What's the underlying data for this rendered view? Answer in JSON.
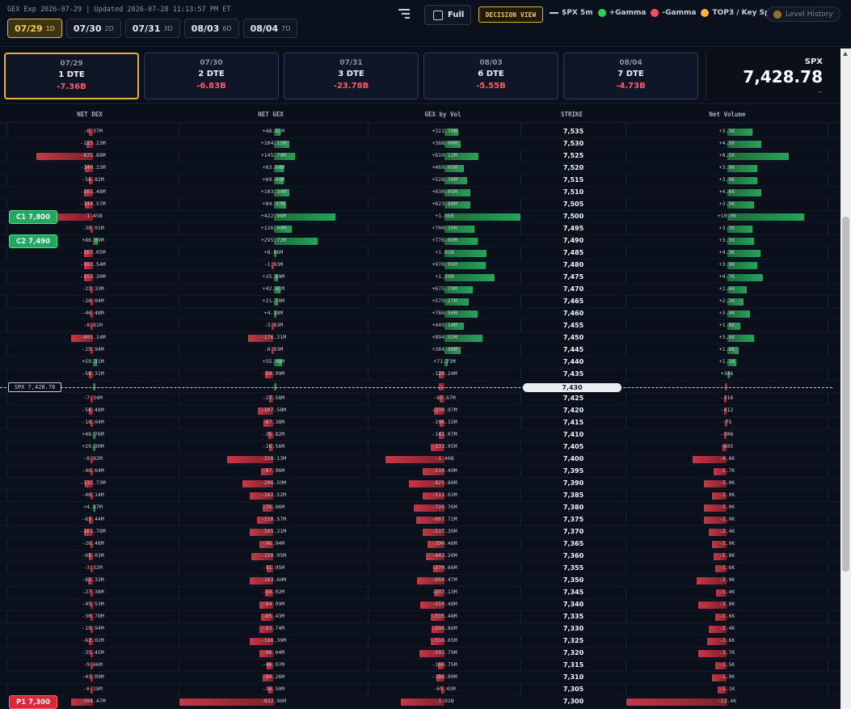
{
  "header": {
    "exp_line": "GEX Exp 2026-07-29 | Updated 2026-07-28 11:13:57 PM ET",
    "tabs": [
      {
        "date": "07/29",
        "dte": "1D"
      },
      {
        "date": "07/30",
        "dte": "2D"
      },
      {
        "date": "07/31",
        "dte": "3D"
      },
      {
        "date": "08/03",
        "dte": "6D"
      },
      {
        "date": "08/04",
        "dte": "7D"
      }
    ],
    "full_label": "Full",
    "decision_label": "DECISION VIEW",
    "legend": {
      "spx5m": "$PX 5m",
      "pos_gamma": "+Gamma",
      "neg_gamma": "-Gamma",
      "top3": "TOP3 / Key Spot"
    },
    "level_history": "Level History",
    "colors": {
      "accent": "#e0b33a",
      "pos": "#2ed156",
      "neg": "#ff4d5e",
      "key": "#f4b73a"
    }
  },
  "cards": [
    {
      "date": "07/29",
      "dte": "1 DTE",
      "gex": "-7.36B"
    },
    {
      "date": "07/30",
      "dte": "2 DTE",
      "gex": "-6.83B"
    },
    {
      "date": "07/31",
      "dte": "3 DTE",
      "gex": "-23.78B"
    },
    {
      "date": "08/03",
      "dte": "6 DTE",
      "gex": "-5.55B"
    },
    {
      "date": "08/04",
      "dte": "7 DTE",
      "gex": "-4.73B"
    }
  ],
  "spx": {
    "label": "SPX",
    "price": "7,428.78",
    "change": "--",
    "tag": "SPX 7,428.78"
  },
  "columns": [
    "NET DEX",
    "NET GEX",
    "GEX by Vol",
    "STRIKE",
    "Net Volume"
  ],
  "levels": {
    "c1": "C1 7,800",
    "c2": "C2 7,490",
    "p1": "P1 7,300"
  },
  "spot_strike": "7,430",
  "rows": [
    {
      "strike": "7,535",
      "dex": "-6.37M",
      "dexv": -0.03,
      "gex": "+48.81M",
      "gexv": 0.05,
      "vol": "+321.79M",
      "volv": 0.12,
      "nv": "+3.3K",
      "nvv": 0.17
    },
    {
      "strike": "7,530",
      "dex": "-123.23M",
      "dexv": -0.05,
      "gex": "+104.15M",
      "gexv": 0.11,
      "vol": "+388.00M",
      "volv": 0.14,
      "nv": "+4.5K",
      "nvv": 0.23
    },
    {
      "strike": "7,525",
      "dex": "-825.88M",
      "dexv": -0.44,
      "gex": "+145.70M",
      "gexv": 0.15,
      "vol": "+810.12M",
      "volv": 0.3,
      "nv": "+8.1K",
      "nvv": 0.41
    },
    {
      "strike": "7,520",
      "dex": "-140.23M",
      "dexv": -0.06,
      "gex": "+63.64M",
      "gexv": 0.07,
      "vol": "+469.05M",
      "volv": 0.17,
      "nv": "+3.9K",
      "nvv": 0.2
    },
    {
      "strike": "7,515",
      "dex": "-56.82M",
      "dexv": -0.03,
      "gex": "+69.04M",
      "gexv": 0.07,
      "vol": "+528.30M",
      "volv": 0.2,
      "nv": "+3.9K",
      "nvv": 0.2
    },
    {
      "strike": "7,510",
      "dex": "-161.48M",
      "dexv": -0.07,
      "gex": "+103.34M",
      "gexv": 0.11,
      "vol": "+630.05M",
      "volv": 0.23,
      "nv": "+4.6K",
      "nvv": 0.23
    },
    {
      "strike": "7,505",
      "dex": "-144.57M",
      "dexv": -0.06,
      "gex": "+84.97M",
      "gexv": 0.09,
      "vol": "+623.88M",
      "volv": 0.23,
      "nv": "+3.5K",
      "nvv": 0.18
    },
    {
      "strike": "7,500",
      "dex": "-1.45B",
      "dexv": -0.4,
      "gex": "+422.96M",
      "gexv": 0.44,
      "vol": "+1.96B",
      "volv": 0.72,
      "nv": "+10.0K",
      "nvv": 0.51
    },
    {
      "strike": "7,495",
      "dex": "-38.91M",
      "dexv": -0.02,
      "gex": "+126.00M",
      "gexv": 0.13,
      "vol": "+700.39M",
      "volv": 0.26,
      "nv": "+3.3K",
      "nvv": 0.17
    },
    {
      "strike": "7,490",
      "dex": "+86.09M",
      "dexv": 0.04,
      "gex": "+295.72M",
      "gexv": 0.31,
      "vol": "+776.60M",
      "volv": 0.29,
      "nv": "+3.5K",
      "nvv": 0.18
    },
    {
      "strike": "7,485",
      "dex": "-163.05M",
      "dexv": -0.07,
      "gex": "+8.06M",
      "gexv": 0.01,
      "vol": "+1.01B",
      "volv": 0.37,
      "nv": "+4.3K",
      "nvv": 0.22
    },
    {
      "strike": "7,480",
      "dex": "-163.54M",
      "dexv": -0.07,
      "gex": "-1.93M",
      "gexv": -0.01,
      "vol": "+970.95M",
      "volv": 0.36,
      "nv": "+3.9K",
      "nvv": 0.2
    },
    {
      "strike": "7,475",
      "dex": "-153.20M",
      "dexv": -0.07,
      "gex": "+25.69M",
      "gexv": 0.03,
      "vol": "+1.20B",
      "volv": 0.44,
      "nv": "+4.7K",
      "nvv": 0.24
    },
    {
      "strike": "7,470",
      "dex": "-23.33M",
      "dexv": -0.02,
      "gex": "+42.81M",
      "gexv": 0.05,
      "vol": "+675.79M",
      "volv": 0.25,
      "nv": "+2.6K",
      "nvv": 0.13
    },
    {
      "strike": "7,465",
      "dex": "-26.04M",
      "dexv": -0.02,
      "gex": "+21.78M",
      "gexv": 0.03,
      "vol": "+579.27M",
      "volv": 0.21,
      "nv": "+2.2K",
      "nvv": 0.11
    },
    {
      "strike": "7,460",
      "dex": "-46.48M",
      "dexv": -0.02,
      "gex": "+4.38M",
      "gexv": 0.01,
      "vol": "+786.56M",
      "volv": 0.29,
      "nv": "+3.0K",
      "nvv": 0.15
    },
    {
      "strike": "7,455",
      "dex": "-8.81M",
      "dexv": -0.01,
      "gex": "-3.83M",
      "gexv": -0.01,
      "vol": "+449.14M",
      "volv": 0.17,
      "nv": "+1.8K",
      "nvv": 0.09
    },
    {
      "strike": "7,450",
      "dex": "-401.14M",
      "dexv": -0.17,
      "gex": "-176.21M",
      "gexv": -0.18,
      "vol": "+894.93M",
      "volv": 0.33,
      "nv": "+3.6K",
      "nvv": 0.18
    },
    {
      "strike": "7,445",
      "dex": "-25.94M",
      "dexv": -0.02,
      "gex": "-8.93M",
      "gexv": -0.01,
      "vol": "+384.48M",
      "volv": 0.14,
      "nv": "+1.6K",
      "nvv": 0.08
    },
    {
      "strike": "7,440",
      "dex": "+59.31M",
      "dexv": 0.03,
      "gex": "+55.48M",
      "gexv": 0.06,
      "vol": "+71.73M",
      "volv": 0.03,
      "nv": "+1.1K",
      "nvv": 0.06
    },
    {
      "strike": "7,435",
      "dex": "-56.31M",
      "dexv": -0.03,
      "gex": "-54.99M",
      "gexv": -0.06,
      "vol": "-120.24M",
      "volv": -0.05,
      "nv": "+346",
      "nvv": 0.02
    },
    {
      "strike": "7,430",
      "dex": "",
      "dexv": 0.01,
      "gex": "",
      "gexv": 0.01,
      "vol": "",
      "volv": -0.05,
      "nv": "",
      "nvv": -0.01
    },
    {
      "strike": "7,425",
      "dex": "-7.34M",
      "dexv": -0.01,
      "gex": "-27.58M",
      "gexv": -0.03,
      "vol": "-87.67M",
      "volv": -0.04,
      "nv": "-316",
      "nvv": -0.02
    },
    {
      "strike": "7,420",
      "dex": "-56.48M",
      "dexv": -0.03,
      "gex": "-107.58M",
      "gexv": -0.11,
      "vol": "-230.97M",
      "volv": -0.09,
      "nv": "-412",
      "nvv": -0.02
    },
    {
      "strike": "7,415",
      "dex": "-18.04M",
      "dexv": -0.01,
      "gex": "-67.38M",
      "gexv": -0.07,
      "vol": "-106.15M",
      "volv": -0.04,
      "nv": "-75",
      "nvv": -0.01
    },
    {
      "strike": "7,410",
      "dex": "+48.76M",
      "dexv": 0.02,
      "gex": "-35.82M",
      "gexv": -0.04,
      "vol": "-141.07M",
      "volv": -0.05,
      "nv": "-308",
      "nvv": -0.02
    },
    {
      "strike": "7,405",
      "dex": "+29.30M",
      "dexv": 0.02,
      "gex": "-26.56M",
      "gexv": -0.03,
      "vol": "-332.95M",
      "volv": -0.12,
      "nv": "-605",
      "nvv": -0.03
    },
    {
      "strike": "7,400",
      "dex": "-8.82M",
      "dexv": -0.01,
      "gex": "-310.13M",
      "gexv": -0.33,
      "vol": "-1.40B",
      "volv": -0.52,
      "nv": "-4.6K",
      "nvv": -0.23
    },
    {
      "strike": "7,395",
      "dex": "-46.64M",
      "dexv": -0.02,
      "gex": "-87.96M",
      "gexv": -0.09,
      "vol": "-510.49M",
      "volv": -0.19,
      "nv": "-1.7K",
      "nvv": -0.09
    },
    {
      "strike": "7,390",
      "dex": "-133.73M",
      "dexv": -0.06,
      "gex": "-206.59M",
      "gexv": -0.22,
      "vol": "-825.66M",
      "volv": -0.31,
      "nv": "-3.0K",
      "nvv": -0.15
    },
    {
      "strike": "7,385",
      "dex": "-46.14M",
      "dexv": -0.02,
      "gex": "-162.52M",
      "gexv": -0.17,
      "vol": "-511.03M",
      "volv": -0.19,
      "nv": "-2.0K",
      "nvv": -0.1
    },
    {
      "strike": "7,380",
      "dex": "+4.47M",
      "dexv": 0.01,
      "gex": "-76.06M",
      "gexv": -0.08,
      "vol": "-726.76M",
      "volv": -0.27,
      "nv": "-3.0K",
      "nvv": -0.15
    },
    {
      "strike": "7,375",
      "dex": "-63.44M",
      "dexv": -0.03,
      "gex": "-110.57M",
      "gexv": -0.12,
      "vol": "-667.72M",
      "volv": -0.25,
      "nv": "-2.9K",
      "nvv": -0.15
    },
    {
      "strike": "7,370",
      "dex": "-161.78M",
      "dexv": -0.07,
      "gex": "-165.21M",
      "gexv": -0.17,
      "vol": "-517.39M",
      "volv": -0.19,
      "nv": "-2.4K",
      "nvv": -0.12
    },
    {
      "strike": "7,365",
      "dex": "-26.48M",
      "dexv": -0.02,
      "gex": "-96.94M",
      "gexv": -0.1,
      "vol": "-390.46M",
      "volv": -0.15,
      "nv": "-1.9K",
      "nvv": -0.1
    },
    {
      "strike": "7,360",
      "dex": "-68.03M",
      "dexv": -0.03,
      "gex": "-150.95M",
      "gexv": -0.16,
      "vol": "-443.20M",
      "volv": -0.16,
      "nv": "-1.8K",
      "nvv": -0.09
    },
    {
      "strike": "7,355",
      "dex": "-3.32M",
      "dexv": -0.01,
      "gex": "-51.95M",
      "gexv": -0.05,
      "vol": "-279.66M",
      "volv": -0.1,
      "nv": "-1.6K",
      "nvv": -0.08
    },
    {
      "strike": "7,350",
      "dex": "-81.33M",
      "dexv": -0.04,
      "gex": "-163.60M",
      "gexv": -0.17,
      "vol": "-650.47M",
      "volv": -0.24,
      "nv": "-3.9K",
      "nvv": -0.2
    },
    {
      "strike": "7,345",
      "dex": "-27.38M",
      "dexv": -0.02,
      "gex": "-58.02M",
      "gexv": -0.06,
      "vol": "-237.13M",
      "volv": -0.09,
      "nv": "-1.4K",
      "nvv": -0.07
    },
    {
      "strike": "7,340",
      "dex": "-45.53M",
      "dexv": -0.02,
      "gex": "-94.99M",
      "gexv": -0.1,
      "vol": "-559.48M",
      "volv": -0.21,
      "nv": "-3.8K",
      "nvv": -0.19
    },
    {
      "strike": "7,335",
      "dex": "-30.78M",
      "dexv": -0.02,
      "gex": "-85.43M",
      "gexv": -0.09,
      "vol": "-335.48M",
      "volv": -0.12,
      "nv": "-1.6K",
      "nvv": -0.08
    },
    {
      "strike": "7,330",
      "dex": "-19.94M",
      "dexv": -0.01,
      "gex": "-93.74M",
      "gexv": -0.1,
      "vol": "-296.86M",
      "volv": -0.11,
      "nv": "-2.4K",
      "nvv": -0.12
    },
    {
      "strike": "7,325",
      "dex": "-62.02M",
      "dexv": -0.03,
      "gex": "-166.39M",
      "gexv": -0.17,
      "vol": "-316.65M",
      "volv": -0.12,
      "nv": "-2.6K",
      "nvv": -0.13
    },
    {
      "strike": "7,320",
      "dex": "-35.45M",
      "dexv": -0.02,
      "gex": "-96.04M",
      "gexv": -0.1,
      "vol": "-592.79M",
      "volv": -0.22,
      "nv": "-3.7K",
      "nvv": -0.19
    },
    {
      "strike": "7,315",
      "dex": "-9.66M",
      "dexv": -0.01,
      "gex": "-46.97M",
      "gexv": -0.05,
      "vol": "-166.75M",
      "volv": -0.06,
      "nv": "-1.5K",
      "nvv": -0.08
    },
    {
      "strike": "7,310",
      "dex": "-43.09M",
      "dexv": -0.02,
      "gex": "-80.26M",
      "gexv": -0.08,
      "vol": "-186.09M",
      "volv": -0.07,
      "nv": "-1.9K",
      "nvv": -0.1
    },
    {
      "strike": "7,305",
      "dex": "-6.18M",
      "dexv": -0.01,
      "gex": "-36.50M",
      "gexv": -0.04,
      "vol": "-65.45M",
      "volv": -0.03,
      "nv": "-1.1K",
      "nvv": -0.06
    },
    {
      "strike": "7,300",
      "dex": "-394.47M",
      "dexv": -0.17,
      "gex": "-832.96M",
      "gexv": -0.88,
      "vol": "-1.02B",
      "volv": -0.38,
      "nv": "-13.4K",
      "nvv": -0.68
    }
  ]
}
